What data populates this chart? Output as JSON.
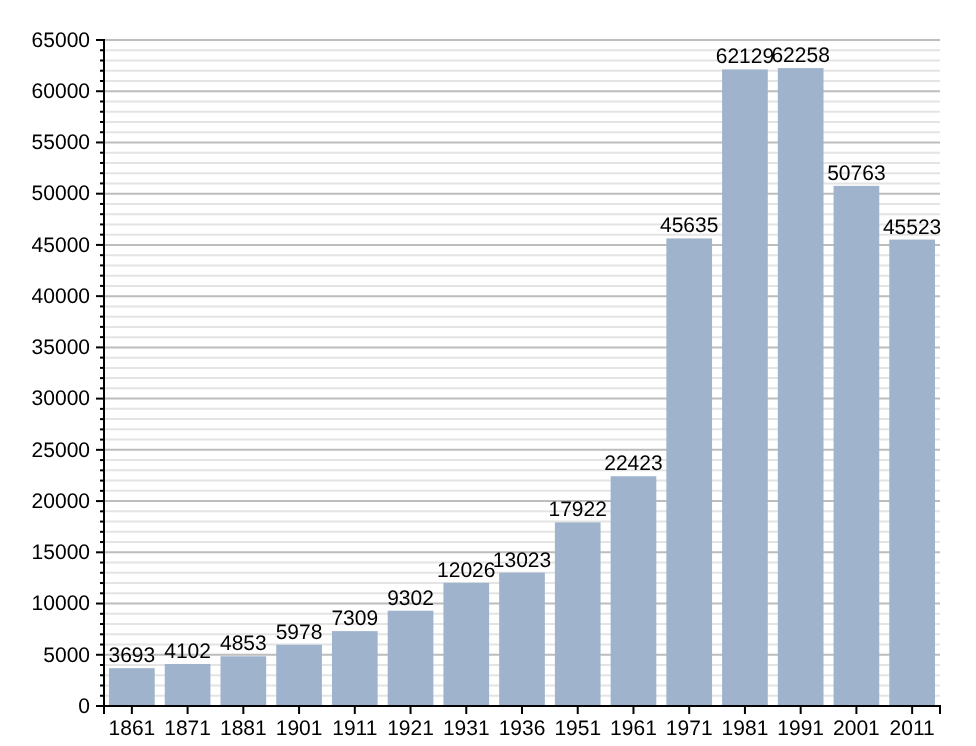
{
  "chart_data": {
    "type": "bar",
    "categories": [
      "1861",
      "1871",
      "1881",
      "1901",
      "1911",
      "1921",
      "1931",
      "1936",
      "1951",
      "1961",
      "1971",
      "1981",
      "1991",
      "2001",
      "2011"
    ],
    "values": [
      3693,
      4102,
      4853,
      5978,
      7309,
      9302,
      12026,
      13023,
      17922,
      22423,
      45635,
      62129,
      62258,
      50763,
      45523
    ],
    "color": "#9fb4cc",
    "data_labels": true,
    "grid": "y",
    "ylim": [
      0,
      65000
    ],
    "yticks": [
      0,
      {
        "value": 1000,
        "label": null
      },
      {
        "value": 2000,
        "label": null
      },
      {
        "value": 3000,
        "label": null
      },
      {
        "value": 4000,
        "label": null
      },
      5000,
      {
        "value": 6000,
        "label": null
      },
      {
        "value": 7000,
        "label": null
      },
      {
        "value": 8000,
        "label": null
      },
      {
        "value": 9000,
        "label": null
      },
      10000,
      {
        "value": 11000,
        "label": null
      },
      {
        "value": 12000,
        "label": null
      },
      {
        "value": 13000,
        "label": null
      },
      {
        "value": 14000,
        "label": null
      },
      15000,
      {
        "value": 16000,
        "label": null
      },
      {
        "value": 17000,
        "label": null
      },
      {
        "value": 18000,
        "label": null
      },
      {
        "value": 19000,
        "label": null
      },
      20000,
      {
        "value": 21000,
        "label": null
      },
      {
        "value": 22000,
        "label": null
      },
      {
        "value": 23000,
        "label": null
      },
      {
        "value": 24000,
        "label": null
      },
      25000,
      {
        "value": 26000,
        "label": null
      },
      {
        "value": 27000,
        "label": null
      },
      {
        "value": 28000,
        "label": null
      },
      {
        "value": 29000,
        "label": null
      },
      30000,
      {
        "value": 31000,
        "label": null
      },
      {
        "value": 32000,
        "label": null
      },
      {
        "value": 33000,
        "label": null
      },
      {
        "value": 34000,
        "label": null
      },
      35000,
      {
        "value": 36000,
        "label": null
      },
      {
        "value": 37000,
        "label": null
      },
      {
        "value": 38000,
        "label": null
      },
      {
        "value": 39000,
        "label": null
      },
      40000,
      {
        "value": 41000,
        "label": null
      },
      {
        "value": 42000,
        "label": null
      },
      {
        "value": 43000,
        "label": null
      },
      {
        "value": 44000,
        "label": null
      },
      45000,
      {
        "value": 46000,
        "label": null
      },
      {
        "value": 47000,
        "label": null
      },
      {
        "value": 48000,
        "label": null
      },
      {
        "value": 49000,
        "label": null
      },
      50000,
      {
        "value": 51000,
        "label": null
      },
      {
        "value": 52000,
        "label": null
      },
      {
        "value": 53000,
        "label": null
      },
      {
        "value": 54000,
        "label": null
      },
      55000,
      {
        "value": 56000,
        "label": null
      },
      {
        "value": 57000,
        "label": null
      },
      {
        "value": 58000,
        "label": null
      },
      {
        "value": 59000,
        "label": null
      },
      60000,
      {
        "value": 61000,
        "label": null
      },
      {
        "value": 62000,
        "label": null
      },
      {
        "value": 63000,
        "label": null
      },
      {
        "value": 64000,
        "label": null
      },
      65000
    ]
  }
}
